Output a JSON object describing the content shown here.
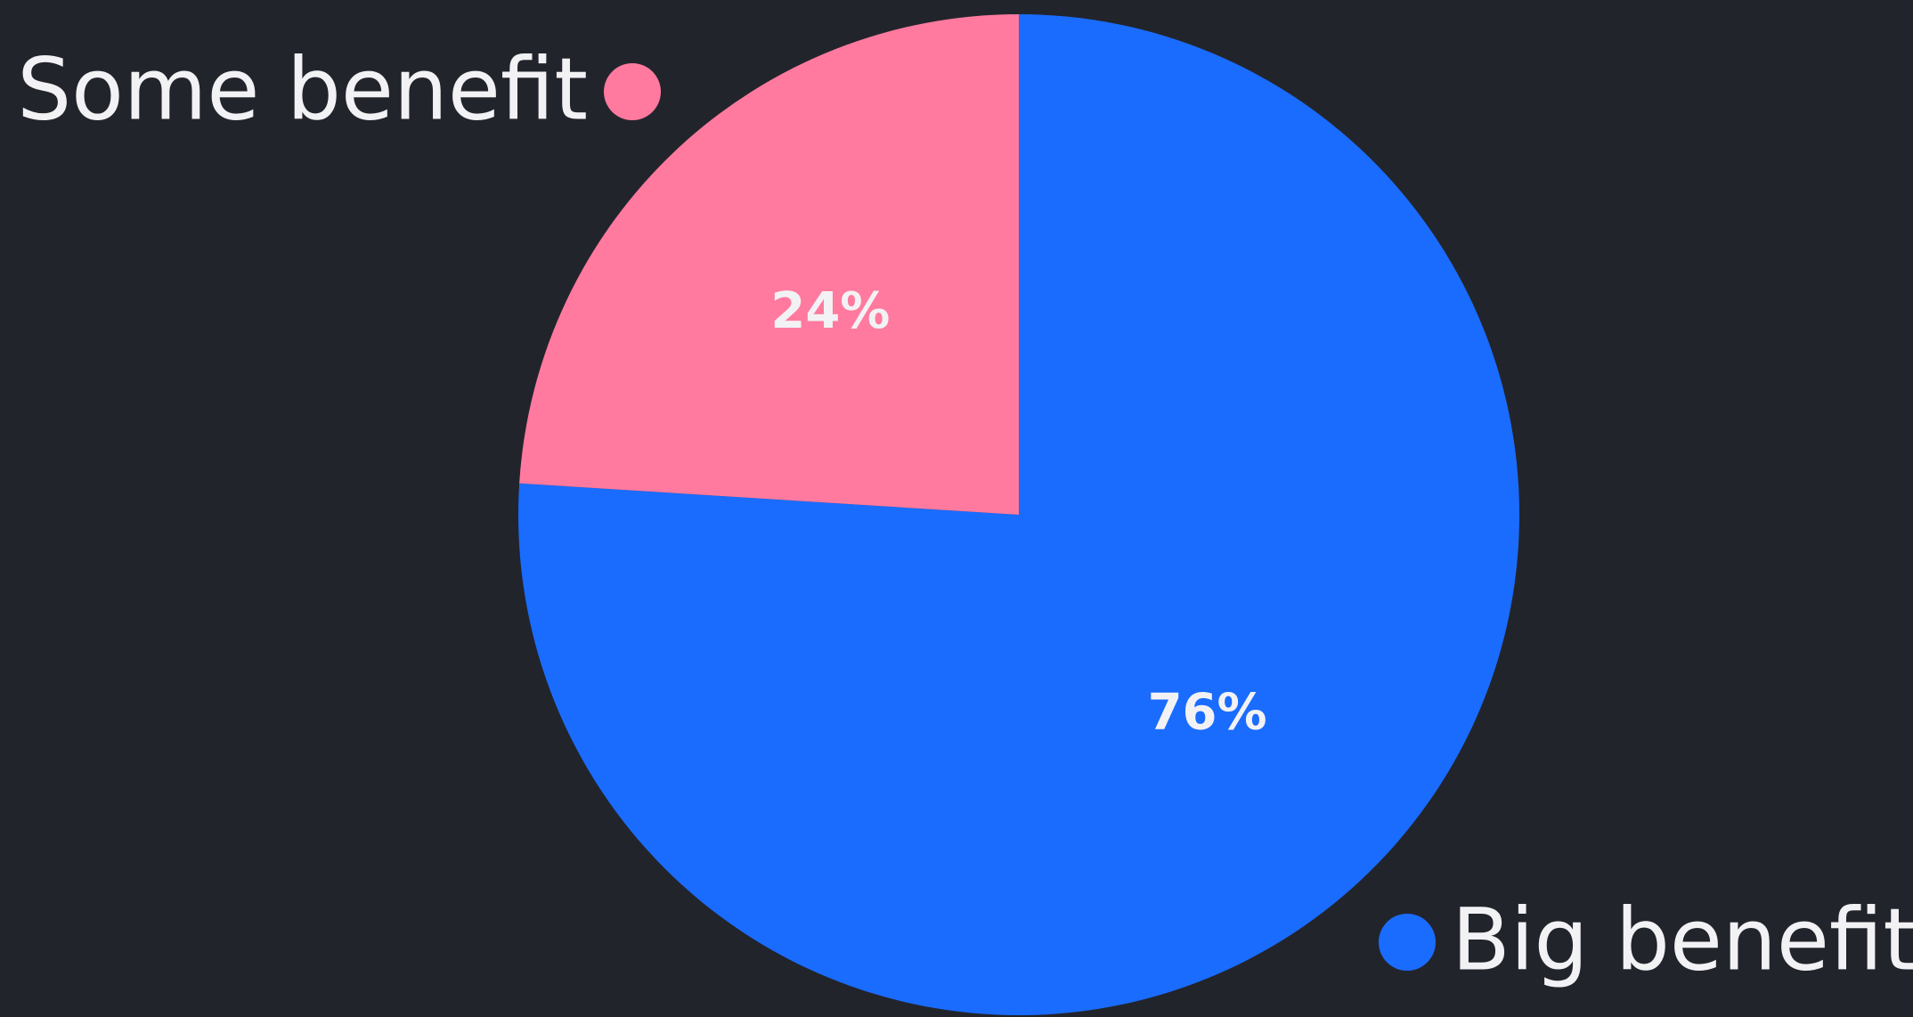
{
  "chart_data": {
    "type": "pie",
    "categories": [
      "Big benefit",
      "Some benefit"
    ],
    "values": [
      76,
      24
    ],
    "value_labels": [
      "76%",
      "24%"
    ],
    "colors": [
      "#1a6cff",
      "#ff7a9e"
    ]
  }
}
